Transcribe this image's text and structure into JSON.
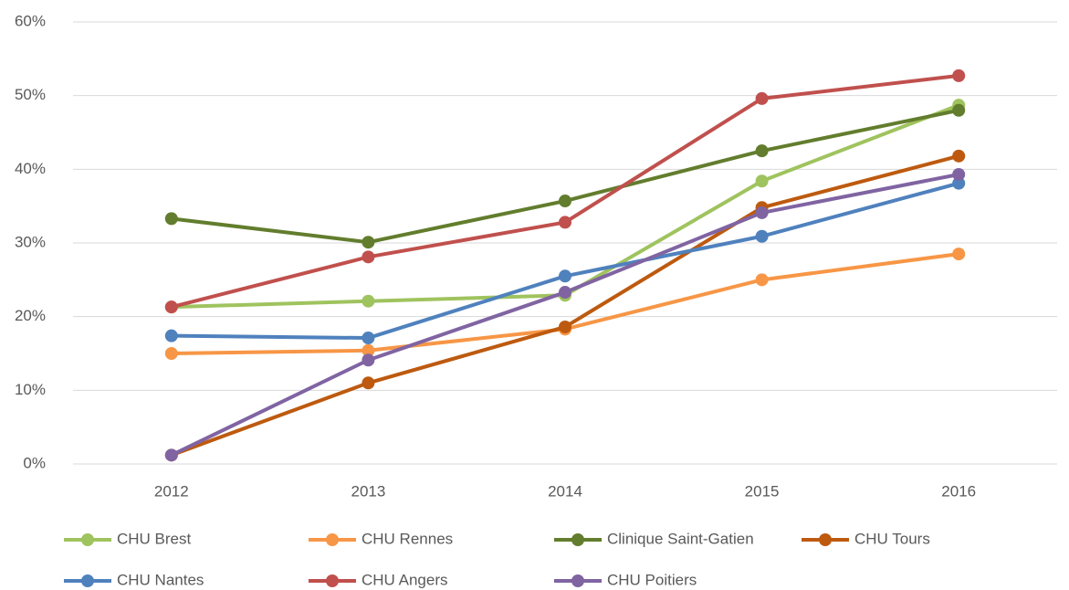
{
  "chart_data": {
    "type": "line",
    "categories": [
      "2012",
      "2013",
      "2014",
      "2015",
      "2016"
    ],
    "series": [
      {
        "name": "CHU Brest",
        "color": "#9fc35e",
        "values": [
          21.3,
          22.1,
          22.9,
          38.4,
          48.7
        ]
      },
      {
        "name": "CHU Rennes",
        "color": "#f79646",
        "values": [
          15.0,
          15.4,
          18.3,
          25.0,
          28.5
        ]
      },
      {
        "name": "Clinique Saint-Gatien",
        "color": "#627d2d",
        "values": [
          33.3,
          30.1,
          35.7,
          42.5,
          48.0
        ]
      },
      {
        "name": "CHU Tours",
        "color": "#bd5a0f",
        "values": [
          1.2,
          11.0,
          18.6,
          34.8,
          41.8
        ]
      },
      {
        "name": "CHU Nantes",
        "color": "#4f81bd",
        "values": [
          17.4,
          17.1,
          25.5,
          30.9,
          38.1
        ]
      },
      {
        "name": "CHU Angers",
        "color": "#c0504d",
        "values": [
          21.3,
          28.1,
          32.8,
          49.6,
          52.7
        ]
      },
      {
        "name": "CHU Poitiers",
        "color": "#8064a2",
        "values": [
          1.2,
          14.1,
          23.3,
          34.1,
          39.3
        ]
      }
    ],
    "ylim": [
      0,
      60
    ],
    "yticks": [
      {
        "value": 0,
        "label": "0%"
      },
      {
        "value": 10,
        "label": "10%"
      },
      {
        "value": 20,
        "label": "20%"
      },
      {
        "value": 30,
        "label": "30%"
      },
      {
        "value": 40,
        "label": "40%"
      },
      {
        "value": 50,
        "label": "50%"
      },
      {
        "value": 60,
        "label": "60%"
      }
    ],
    "grid": true,
    "legend": "bottom"
  }
}
